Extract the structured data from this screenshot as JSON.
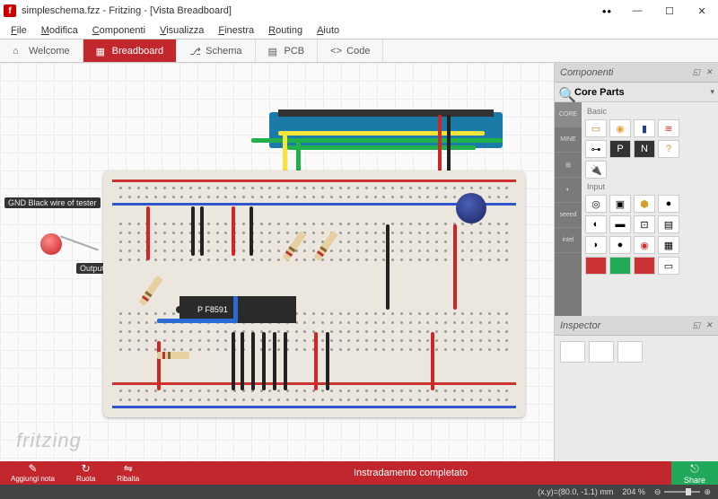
{
  "titlebar": {
    "app_letter": "f",
    "title": "simpleschema.fzz - Fritzing - [Vista Breadboard]",
    "dots": "••"
  },
  "menu": {
    "items": [
      "File",
      "Modifica",
      "Componenti",
      "Visualizza",
      "Finestra",
      "Routing",
      "Aiuto"
    ]
  },
  "tabs": {
    "items": [
      {
        "label": "Welcome",
        "icon": "welcome-icon"
      },
      {
        "label": "Breadboard",
        "icon": "breadboard-icon",
        "active": true
      },
      {
        "label": "Schema",
        "icon": "schema-icon"
      },
      {
        "label": "PCB",
        "icon": "pcb-icon"
      },
      {
        "label": "Code",
        "icon": "code-icon"
      }
    ]
  },
  "canvas": {
    "notes": {
      "gnd": "GND Black wire of tester",
      "output": "Output red wire of tester"
    },
    "chip_label": "P F8591",
    "watermark": "fritzing",
    "colors": {
      "breadboard": "#ece7de",
      "arduino": "#1a7aa8",
      "chip": "#2a2a2a",
      "wire_yellow": "#f5e538",
      "wire_green": "#21b04b",
      "wire_red": "#d02626",
      "wire_black": "#222222",
      "wire_blue": "#2a6bd4",
      "led": "#c42020",
      "capacitor": "#1a2560"
    }
  },
  "side": {
    "components_title": "Componenti",
    "search_label": "Core Parts",
    "categories": [
      "CORE",
      "MINE",
      "",
      "",
      "seeed",
      "intel"
    ],
    "sections": [
      "Basic",
      "Input"
    ],
    "inspector_title": "Inspector"
  },
  "bottom": {
    "buttons": [
      {
        "icon": "✎",
        "label": "Aggiungi nota"
      },
      {
        "icon": "↻",
        "label": "Ruota"
      },
      {
        "icon": "⇋",
        "label": "Ribalta"
      }
    ],
    "center": "Instradamento completato",
    "share": "Share",
    "share_icon": "�об"
  },
  "status": {
    "coords": "(x,y)=(80.0, -1.1) mm",
    "zoom": "204 %"
  }
}
